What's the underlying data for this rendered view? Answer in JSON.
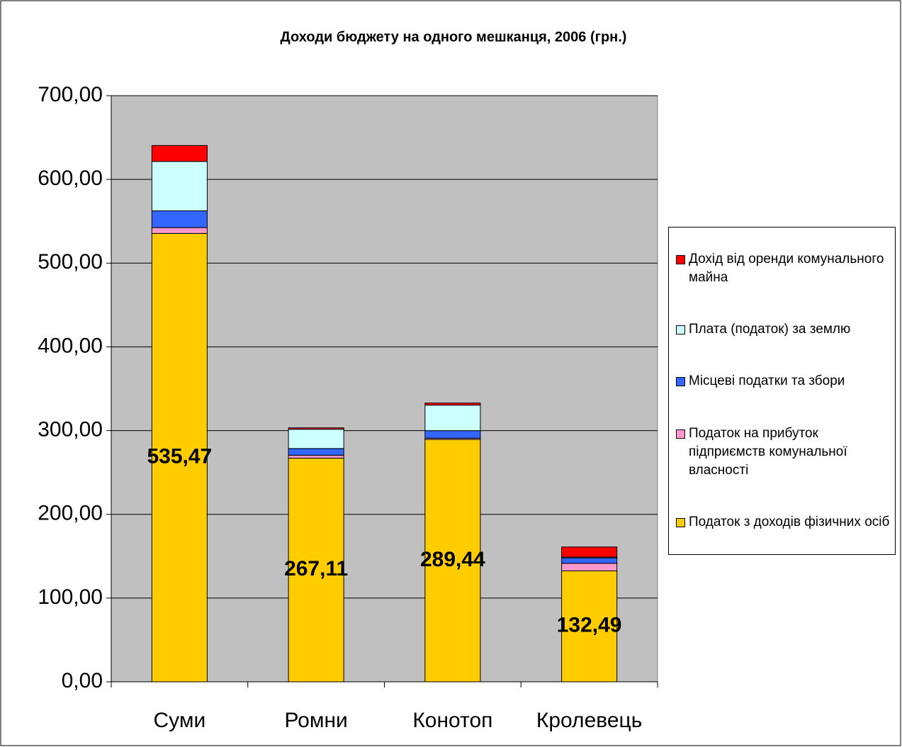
{
  "chart_data": {
    "type": "stacked_bar",
    "title": "Доходи бюджету на одного мешканця, 2006 (грн.)",
    "categories": [
      "Суми",
      "Ромни",
      "Конотоп",
      "Кролевець"
    ],
    "series": [
      {
        "name": "Податок з доходів фізичних осіб",
        "color": "#ffcc00",
        "values": [
          535.47,
          267.11,
          289.44,
          132.49
        ],
        "value_labels": [
          "535,47",
          "267,11",
          "289,44",
          "132,49"
        ]
      },
      {
        "name": "Податок на прибуток підприємств комунальної власності",
        "color": "#ff99cc",
        "values": [
          7,
          3.5,
          1.5,
          9
        ]
      },
      {
        "name": "Місцеві податки та збори",
        "color": "#3366ff",
        "values": [
          20,
          8,
          9,
          6.5
        ]
      },
      {
        "name": "Плата (податок) за землю",
        "color": "#ccffff",
        "values": [
          59,
          23,
          30.5,
          1
        ]
      },
      {
        "name": "Дохід від оренди комунального майна",
        "color": "#ff0000",
        "values": [
          19,
          1.7,
          2.5,
          12
        ]
      }
    ],
    "ylim": [
      0,
      700
    ],
    "yticks": [
      {
        "value": 0,
        "label": "0,00"
      },
      {
        "value": 100,
        "label": "100,00"
      },
      {
        "value": 200,
        "label": "200,00"
      },
      {
        "value": 300,
        "label": "300,00"
      },
      {
        "value": 400,
        "label": "400,00"
      },
      {
        "value": 500,
        "label": "500,00"
      },
      {
        "value": 600,
        "label": "600,00"
      },
      {
        "value": 700,
        "label": "700,00"
      }
    ],
    "grid": true,
    "legend": "right"
  }
}
